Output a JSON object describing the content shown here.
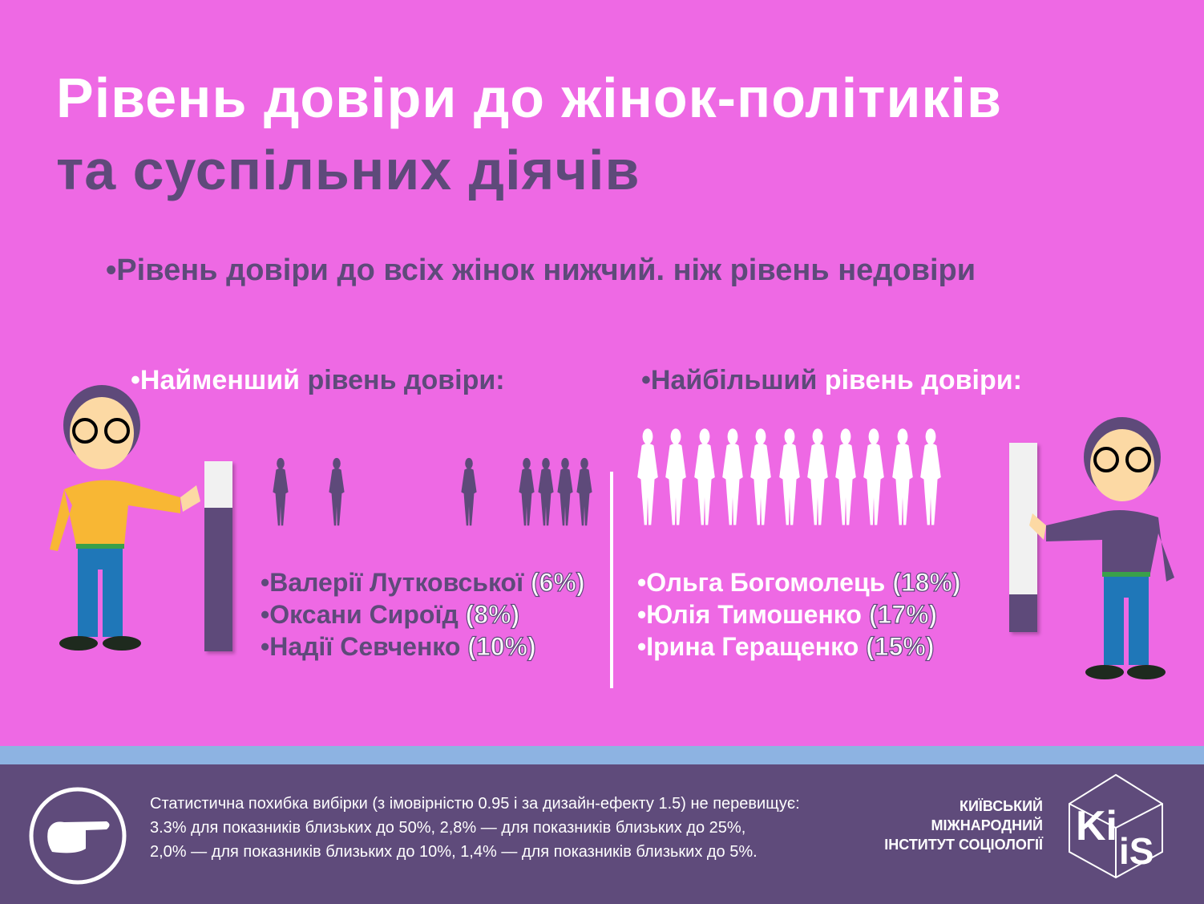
{
  "title": {
    "line1": "Рівень довіри до жінок-політиків",
    "line2": "та суспільних діячів"
  },
  "subtitle": "•Рівень довіри до всіх жінок нижчий. ніж рівень недовіри",
  "lowest": {
    "bullet": "•",
    "label_a": "Найменший",
    "label_b": " рівень довіри:",
    "trust_bar_fraction": 0.25,
    "items": [
      {
        "name": "•Валерії Лутковської ",
        "pct": "(6%)"
      },
      {
        "name": "•Оксани Сироїд ",
        "pct": "(8%)"
      },
      {
        "name": "•Надії Севченко ",
        "pct": "(10%)"
      }
    ]
  },
  "highest": {
    "label_a": "•Найбільший",
    "label_b": " рівень довіри:",
    "trust_bar_fraction": 0.2,
    "items": [
      {
        "name": "•Ольга Богомолець ",
        "pct": "(18%)"
      },
      {
        "name": "•Юлія Тимошенко ",
        "pct": "(17%)"
      },
      {
        "name": "•Ірина Геращенко ",
        "pct": "(15%)"
      }
    ]
  },
  "footer": {
    "note": [
      "Статистична похибка вибірки (з імовірністю 0.95 і за дизайн-ефекту 1.5) не перевищує:",
      "3.3% для показників близьких до 50%, 2,8% — для показників близьких до 25%,",
      "2,0% — для показників близьких до 10%, 1,4% — для показників близьких до 5%."
    ],
    "org": [
      "КИЇВСЬКИЙ",
      "МІЖНАРОДНИЙ",
      "ІНСТИТУТ СОЦІОЛОГІЇ"
    ],
    "logo_text": "KIIS"
  },
  "colors": {
    "background": "#ee69e4",
    "purple": "#5e4a7a",
    "band": "#8db3e2"
  }
}
